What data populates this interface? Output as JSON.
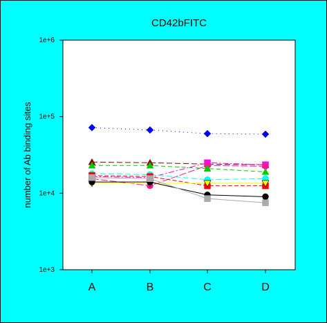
{
  "chart_data": {
    "type": "line",
    "title": "CD42bFITC",
    "xlabel": "",
    "ylabel": "number of Ab binding sites",
    "yscale": "log",
    "ylim": [
      1000,
      1000000
    ],
    "grid": false,
    "categories": [
      "A",
      "B",
      "C",
      "D"
    ],
    "ytick_labels": [
      "1e+3",
      "1e+4",
      "1e+5",
      "1e+6"
    ],
    "ytick_values": [
      1000,
      10000,
      100000,
      1000000
    ],
    "series": [
      {
        "color": "#0000ff",
        "marker": "diamond",
        "dash": "1,5",
        "values": [
          72000,
          67000,
          60000,
          59000
        ]
      },
      {
        "color": "#8b0000",
        "marker": "triangle",
        "dash": "8,4",
        "values": [
          25500,
          25000,
          24000,
          23500
        ]
      },
      {
        "color": "#ff00ff",
        "marker": "square",
        "dash": "8,3,2,3",
        "values": [
          16500,
          16000,
          25000,
          23500
        ]
      },
      {
        "color": "#ff1493",
        "marker": "circle",
        "dash": "10,3",
        "values": [
          15500,
          12500,
          23000,
          22500
        ]
      },
      {
        "color": "#00cc00",
        "marker": "triangle",
        "dash": "6,4",
        "values": [
          23000,
          23000,
          21000,
          19000
        ]
      },
      {
        "color": "#00ffff",
        "marker": "circle",
        "dash": "8,4",
        "values": [
          18000,
          17500,
          15000,
          15500
        ]
      },
      {
        "color": "#ff0000",
        "marker": "square",
        "dash": "6,3",
        "values": [
          17000,
          16500,
          12500,
          12500
        ]
      },
      {
        "color": "#ffff00",
        "marker": "triangle-down",
        "dash": "",
        "values": [
          13500,
          13500,
          13500,
          13500
        ]
      },
      {
        "color": "#000000",
        "marker": "circle",
        "dash": "",
        "values": [
          14000,
          14000,
          9500,
          9000
        ]
      },
      {
        "color": "#aaaaaa",
        "marker": "square",
        "dash": "",
        "values": [
          16000,
          15500,
          8500,
          7500
        ]
      }
    ]
  }
}
